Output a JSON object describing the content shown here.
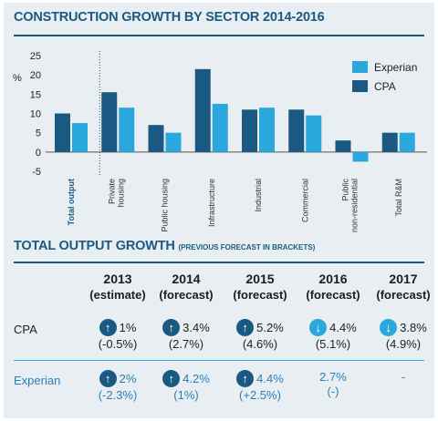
{
  "header": {
    "title": "CONSTRUCTION GROWTH BY SECTOR 2014-2016"
  },
  "chart_data": {
    "type": "bar",
    "ylabel": "%",
    "ylim": [
      -5,
      25
    ],
    "yticks": [
      25,
      20,
      15,
      10,
      5,
      0,
      -5
    ],
    "grid": false,
    "legend_position": "top-right",
    "categories": [
      "Total output",
      "Private housing",
      "Public housing",
      "Infrastructure",
      "Industrial",
      "Commercial",
      "Public non-residential",
      "Total R&M"
    ],
    "category_label_lines": [
      [
        "Total output"
      ],
      [
        "Private",
        "housing"
      ],
      [
        "Public housing"
      ],
      [
        "Infrastructure"
      ],
      [
        "Industrial"
      ],
      [
        "Commercial"
      ],
      [
        "Public",
        "non-residential"
      ],
      [
        "Total R&M"
      ]
    ],
    "series": [
      {
        "name": "CPA",
        "color": "#1a5a82",
        "values": [
          10,
          15.5,
          7,
          21.5,
          11,
          11,
          3,
          5
        ]
      },
      {
        "name": "Experian",
        "color": "#2aa7dc",
        "values": [
          7.5,
          11.5,
          5,
          12.5,
          11.5,
          9.5,
          -2.5,
          5
        ]
      }
    ]
  },
  "table": {
    "title": "TOTAL OUTPUT GROWTH",
    "subtitle": "(PREVIOUS FORECAST IN BRACKETS)",
    "columns": [
      {
        "year": "2013",
        "note": "(estimate)"
      },
      {
        "year": "2014",
        "note": "(forecast)"
      },
      {
        "year": "2015",
        "note": "(forecast)"
      },
      {
        "year": "2016",
        "note": "(forecast)"
      },
      {
        "year": "2017",
        "note": "(forecast)"
      }
    ],
    "rows": [
      {
        "label": "CPA",
        "cells": [
          {
            "value": "1%",
            "prev": "(-0.5%)",
            "arrow": "up"
          },
          {
            "value": "3.4%",
            "prev": "(2.7%)",
            "arrow": "up"
          },
          {
            "value": "5.2%",
            "prev": "(4.6%)",
            "arrow": "up"
          },
          {
            "value": "4.4%",
            "prev": "(5.1%)",
            "arrow": "down"
          },
          {
            "value": "3.8%",
            "prev": "(4.9%)",
            "arrow": "down"
          }
        ]
      },
      {
        "label": "Experian",
        "cells": [
          {
            "value": "2%",
            "prev": "(-2.3%)",
            "arrow": "up"
          },
          {
            "value": "4.2%",
            "prev": "(1%)",
            "arrow": "up"
          },
          {
            "value": "4.4%",
            "prev": "(+2.5%)",
            "arrow": "up"
          },
          {
            "value": "2.7%",
            "prev": "(-)",
            "arrow": ""
          },
          {
            "value": "-",
            "prev": "",
            "arrow": ""
          }
        ]
      }
    ]
  }
}
